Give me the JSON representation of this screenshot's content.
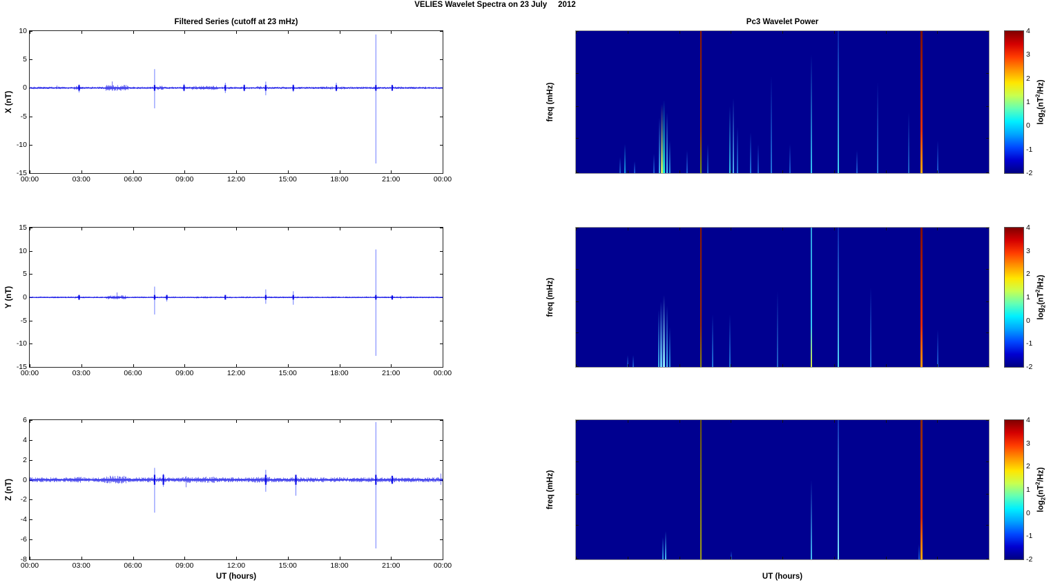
{
  "page_title": "VELIES Wavelet Spectra on 23 July     2012",
  "xlabel": "UT (hours)",
  "time_ticks": [
    "00:00",
    "03:00",
    "06:00",
    "09:00",
    "12:00",
    "15:00",
    "18:00",
    "21:00",
    "00:00"
  ],
  "colors": {
    "line": "#0000e6",
    "spike": "#3c50ff",
    "spec_bg": "#000090",
    "axis": "#000000",
    "spec_border": "#999999"
  },
  "colorbar": {
    "ticks": [
      "4",
      "3",
      "2",
      "1",
      "0",
      "-1",
      "-2"
    ],
    "value_range": [
      -2,
      4
    ],
    "label": {
      "prefix": "log",
      "sub": "2",
      "mid": "(nT",
      "sup": "2",
      "suffix": "/Hz)"
    },
    "gradient": [
      "#800000",
      "#d40000",
      "#ff3c00",
      "#ff9400",
      "#ffe600",
      "#c8ff50",
      "#64ffb4",
      "#00f0ff",
      "#00a4ff",
      "#0048ff",
      "#0000d0",
      "#000082"
    ]
  },
  "chart_data": [
    {
      "id": "ts_x",
      "type": "line",
      "title": "Filtered Series (cutoff at 23 mHz)",
      "ylabel": "X (nT)",
      "xlim_hours": [
        0,
        24
      ],
      "ylim": [
        -15,
        10
      ],
      "yticks": [
        10,
        5,
        0,
        -5,
        -10,
        -15
      ],
      "noise_nT": 0.16,
      "bursts": [
        [
          2.55,
          2.95,
          1.6
        ],
        [
          4.4,
          5.7,
          2.4
        ],
        [
          7.35,
          7.75,
          1.7
        ],
        [
          9.4,
          10.9,
          1.6
        ],
        [
          13.2,
          13.5,
          1.5
        ],
        [
          16.9,
          18.3,
          1.2
        ]
      ],
      "spikes": [
        {
          "t": 2.85,
          "u": 0.6,
          "d": -0.8
        },
        {
          "t": 7.24,
          "u": 3.3,
          "d": -3.6
        },
        {
          "t": 8.95,
          "u": 0.7,
          "d": -0.6
        },
        {
          "t": 11.35,
          "u": 0.9,
          "d": -0.9
        },
        {
          "t": 12.45,
          "u": 0.6,
          "d": -0.6
        },
        {
          "t": 13.7,
          "u": 1.1,
          "d": -1.3
        },
        {
          "t": 15.3,
          "u": 0.6,
          "d": -0.7
        },
        {
          "t": 17.8,
          "u": 0.9,
          "d": -0.6
        },
        {
          "t": 20.1,
          "u": 9.4,
          "d": -13.3
        },
        {
          "t": 21.05,
          "u": 0.5,
          "d": -0.5
        }
      ]
    },
    {
      "id": "ts_y",
      "type": "line",
      "title": "",
      "ylabel": "Y (nT)",
      "xlim_hours": [
        0,
        24
      ],
      "ylim": [
        -15,
        15
      ],
      "yticks": [
        15,
        10,
        5,
        0,
        -5,
        -10,
        -15
      ],
      "noise_nT": 0.14,
      "bursts": [
        [
          2.6,
          2.9,
          1.4
        ],
        [
          4.4,
          5.6,
          2.2
        ],
        [
          9.5,
          10.5,
          1.2
        ]
      ],
      "spikes": [
        {
          "t": 2.85,
          "u": 0.5,
          "d": -0.6
        },
        {
          "t": 7.24,
          "u": 2.3,
          "d": -3.7
        },
        {
          "t": 7.95,
          "u": 0.5,
          "d": -0.9
        },
        {
          "t": 11.35,
          "u": 0.5,
          "d": -0.5
        },
        {
          "t": 13.7,
          "u": 1.7,
          "d": -1.4
        },
        {
          "t": 15.3,
          "u": 1.3,
          "d": -1.6
        },
        {
          "t": 20.1,
          "u": 10.3,
          "d": -12.6
        },
        {
          "t": 21.05,
          "u": 0.4,
          "d": -0.5
        }
      ]
    },
    {
      "id": "ts_z",
      "type": "line",
      "title": "",
      "ylabel": "Z (nT)",
      "xlim_hours": [
        0,
        24
      ],
      "ylim": [
        -8,
        6
      ],
      "yticks": [
        6,
        4,
        2,
        0,
        -2,
        -4,
        -6,
        -8
      ],
      "noise_nT": 0.18,
      "bursts": [
        [
          2.5,
          3.0,
          1.2
        ],
        [
          4.3,
          5.6,
          1.7
        ],
        [
          9.0,
          10.8,
          1.3
        ],
        [
          13.0,
          14.0,
          1.2
        ]
      ],
      "spikes": [
        {
          "t": 7.24,
          "u": 1.2,
          "d": -3.3
        },
        {
          "t": 7.75,
          "u": 0.6,
          "d": -0.7
        },
        {
          "t": 13.7,
          "u": 1.0,
          "d": -1.2
        },
        {
          "t": 15.45,
          "u": 0.5,
          "d": -1.6
        },
        {
          "t": 20.1,
          "u": 5.8,
          "d": -6.9
        },
        {
          "t": 21.05,
          "u": 0.4,
          "d": -0.4
        }
      ]
    },
    {
      "id": "spec_x",
      "type": "heatmap",
      "title": "Pc3 Wavelet Power",
      "ylabel": "freq (mHz)",
      "xlim_hours": [
        0,
        24
      ],
      "flim": [
        22,
        100
      ],
      "yticks": [
        100,
        64,
        45,
        32,
        22
      ],
      "value_range": [
        -2,
        4
      ],
      "streaks": [
        {
          "t": 2.55,
          "f": 26,
          "c": "#1e5fd6"
        },
        {
          "t": 2.85,
          "f": 30,
          "c": "#18a6e8"
        },
        {
          "t": 3.4,
          "f": 25,
          "c": "#1e5fd6"
        },
        {
          "t": 4.55,
          "f": 27,
          "c": "#1e5fd6"
        },
        {
          "t": 4.85,
          "f": 40,
          "c": "#3fb5f0"
        },
        {
          "t": 5.0,
          "f": 46,
          "c": "#c8f060",
          "w": 3
        },
        {
          "t": 5.12,
          "f": 48,
          "c": "#20f0d0",
          "w": 3
        },
        {
          "t": 5.28,
          "f": 42,
          "c": "#50c8f8"
        },
        {
          "t": 5.45,
          "f": 31,
          "c": "#2b8de0"
        },
        {
          "t": 6.45,
          "f": 28,
          "c": "#1e5fd6"
        },
        {
          "t": 7.25,
          "f": 100,
          "c": "#7a9a10",
          "mc": "#a03000",
          "tc": "#8c1a00"
        },
        {
          "t": 7.65,
          "f": 30,
          "c": "#1e5fd6"
        },
        {
          "t": 8.95,
          "f": 45,
          "c": "#2fc4f0"
        },
        {
          "t": 9.15,
          "f": 49,
          "c": "#4fb0f0"
        },
        {
          "t": 9.4,
          "f": 36,
          "c": "#2277dd"
        },
        {
          "t": 10.15,
          "f": 34,
          "c": "#2277dd"
        },
        {
          "t": 10.6,
          "f": 30,
          "c": "#1e5fd6"
        },
        {
          "t": 11.35,
          "f": 62,
          "c": "#2277dd"
        },
        {
          "t": 12.45,
          "f": 30,
          "c": "#1e5fd6"
        },
        {
          "t": 13.7,
          "f": 78,
          "c": "#35c8f5"
        },
        {
          "t": 15.25,
          "f": 100,
          "c": "#45d5f5",
          "tc": "rgba(40,120,255,0.25)"
        },
        {
          "t": 16.35,
          "f": 28,
          "c": "#1e5fd6"
        },
        {
          "t": 17.55,
          "f": 58,
          "c": "#2574dd"
        },
        {
          "t": 19.35,
          "f": 42,
          "c": "#2266cc"
        },
        {
          "t": 20.1,
          "f": 100,
          "c": "#ffaa00",
          "mc": "#e03000",
          "tc": "#7a1000",
          "w": 3
        },
        {
          "t": 21.05,
          "f": 31,
          "c": "#1e5fd6"
        }
      ]
    },
    {
      "id": "spec_y",
      "type": "heatmap",
      "title": "",
      "ylabel": "freq (mHz)",
      "xlim_hours": [
        0,
        24
      ],
      "flim": [
        22,
        100
      ],
      "yticks": [
        100,
        64,
        45,
        32,
        22
      ],
      "value_range": [
        -2,
        4
      ],
      "streaks": [
        {
          "t": 3.0,
          "f": 25,
          "c": "#1e5fd6"
        },
        {
          "t": 3.35,
          "f": 25,
          "c": "#1e5fd6"
        },
        {
          "t": 4.8,
          "f": 41,
          "c": "#3fb5f0"
        },
        {
          "t": 4.95,
          "f": 45,
          "c": "#6fd8ff",
          "w": 3
        },
        {
          "t": 5.1,
          "f": 48,
          "c": "#8feeff",
          "w": 3
        },
        {
          "t": 5.3,
          "f": 43,
          "c": "#45c0f5"
        },
        {
          "t": 5.45,
          "f": 34,
          "c": "#2b8de0"
        },
        {
          "t": 7.25,
          "f": 100,
          "c": "#8a8a10",
          "mc": "#a03000",
          "tc": "#8c1a00"
        },
        {
          "t": 7.95,
          "f": 39,
          "c": "#2277dd"
        },
        {
          "t": 8.95,
          "f": 39,
          "c": "#2277dd"
        },
        {
          "t": 11.7,
          "f": 50,
          "c": "#2266cc"
        },
        {
          "t": 13.7,
          "f": 100,
          "c": "#d8e840",
          "mc": "#35c8f5",
          "tc": "#2fa0e0"
        },
        {
          "t": 15.25,
          "f": 100,
          "c": "#55d8f8",
          "tc": "rgba(40,120,255,0.3)"
        },
        {
          "t": 17.15,
          "f": 52,
          "c": "#2574dd"
        },
        {
          "t": 20.1,
          "f": 100,
          "c": "#ff9900",
          "mc": "#e02800",
          "tc": "#801000",
          "w": 3
        },
        {
          "t": 21.05,
          "f": 33,
          "c": "#1e5fd6"
        }
      ]
    },
    {
      "id": "spec_z",
      "type": "heatmap",
      "title": "",
      "ylabel": "freq (mHz)",
      "xlim_hours": [
        0,
        24
      ],
      "flim": [
        22,
        100
      ],
      "yticks": [
        100,
        64,
        45,
        32,
        22
      ],
      "value_range": [
        -2,
        4
      ],
      "streaks": [
        {
          "t": 5.05,
          "f": 28,
          "c": "#2f9fe8"
        },
        {
          "t": 5.2,
          "f": 30,
          "c": "#45c0f5"
        },
        {
          "t": 7.25,
          "f": 100,
          "c": "#a0a018",
          "tc": "#6a5510"
        },
        {
          "t": 9.05,
          "f": 24,
          "c": "#1e5fd6"
        },
        {
          "t": 13.7,
          "f": 52,
          "c": "#45c0f5"
        },
        {
          "t": 15.25,
          "f": 100,
          "c": "#7fe8ff",
          "tc": "rgba(50,140,255,0.35)"
        },
        {
          "t": 19.95,
          "f": 26,
          "c": "#1e5fd6"
        },
        {
          "t": 20.1,
          "f": 100,
          "c": "#ffaa00",
          "mc": "#d02800",
          "tc": "#8c2a10",
          "w": 3
        }
      ]
    }
  ]
}
